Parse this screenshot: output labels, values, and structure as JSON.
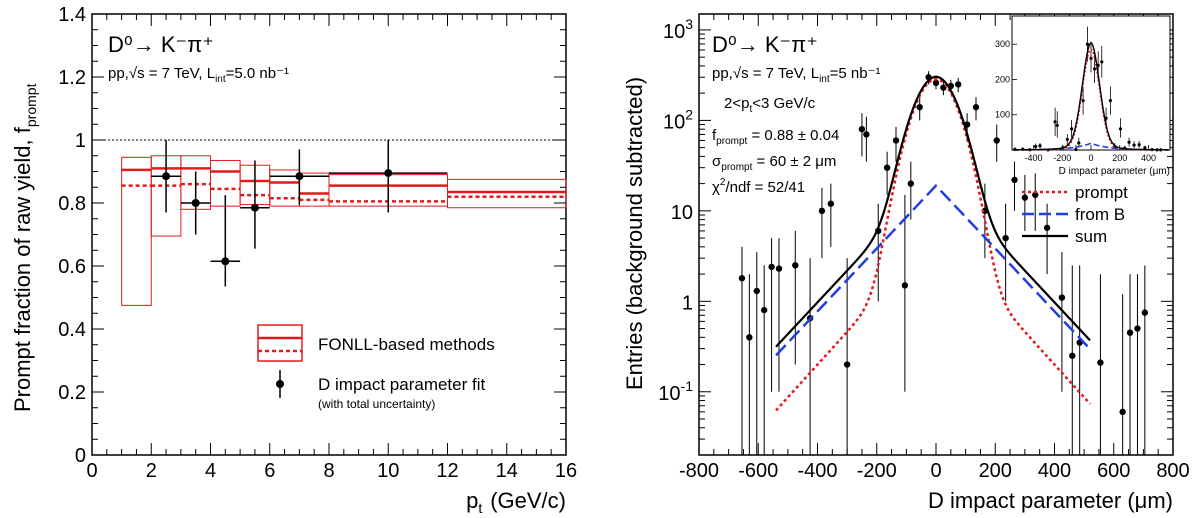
{
  "chart_data": [
    {
      "type": "scatter",
      "title": "",
      "xlabel": "p_t (GeV/c)",
      "ylabel": "Prompt fraction of raw yield, f_prompt",
      "xlim": [
        0,
        16
      ],
      "ylim": [
        0,
        1.4
      ],
      "x_ticks": [
        "0",
        "2",
        "4",
        "6",
        "8",
        "10",
        "12",
        "14",
        "16"
      ],
      "y_ticks": [
        "0",
        "0.2",
        "0.4",
        "0.6",
        "0.8",
        "1",
        "1.2",
        "1.4"
      ],
      "reference_line": 1,
      "annotations": {
        "decay": "D⁰→ K⁻π⁺",
        "system": "pp,√s = 7 TeV, L",
        "lumi_sub": "int",
        "lumi_value": "=5.0 nb⁻¹"
      },
      "legend": {
        "fonll_label": "FONLL-based methods",
        "fit_label": "D impact parameter fit",
        "fit_note": "(with total uncertainty)",
        "placement": "bottom-right"
      },
      "fonll_bins": [
        {
          "xlo": 1,
          "xhi": 2,
          "central": 0.905,
          "band_lo": 0.475,
          "band_hi": 0.945,
          "dashed": 0.855
        },
        {
          "xlo": 2,
          "xhi": 3,
          "central": 0.91,
          "band_lo": 0.695,
          "band_hi": 0.95,
          "dashed": 0.855
        },
        {
          "xlo": 3,
          "xhi": 4,
          "central": 0.91,
          "band_lo": 0.78,
          "band_hi": 0.95,
          "dashed": 0.86
        },
        {
          "xlo": 4,
          "xhi": 5,
          "central": 0.9,
          "band_lo": 0.79,
          "band_hi": 0.935,
          "dashed": 0.845
        },
        {
          "xlo": 5,
          "xhi": 6,
          "central": 0.87,
          "band_lo": 0.795,
          "band_hi": 0.92,
          "dashed": 0.825
        },
        {
          "xlo": 6,
          "xhi": 7,
          "central": 0.865,
          "band_lo": 0.79,
          "band_hi": 0.905,
          "dashed": 0.815
        },
        {
          "xlo": 7,
          "xhi": 8,
          "central": 0.83,
          "band_lo": 0.79,
          "band_hi": 0.895,
          "dashed": 0.81
        },
        {
          "xlo": 8,
          "xhi": 12,
          "central": 0.855,
          "band_lo": 0.79,
          "band_hi": 0.89,
          "dashed": 0.805
        },
        {
          "xlo": 12,
          "xhi": 16,
          "central": 0.835,
          "band_lo": 0.785,
          "band_hi": 0.875,
          "dashed": 0.82
        }
      ],
      "points": [
        {
          "x": 2.5,
          "xerr": 0.5,
          "y": 0.885,
          "ylo": 0.77,
          "yhi": 1.0
        },
        {
          "x": 3.5,
          "xerr": 0.5,
          "y": 0.8,
          "ylo": 0.7,
          "yhi": 0.9
        },
        {
          "x": 4.5,
          "xerr": 0.5,
          "y": 0.615,
          "ylo": 0.535,
          "yhi": 0.825
        },
        {
          "x": 5.5,
          "xerr": 0.5,
          "y": 0.785,
          "ylo": 0.655,
          "yhi": 0.935
        },
        {
          "x": 7.0,
          "xerr": 1.0,
          "y": 0.885,
          "ylo": 0.795,
          "yhi": 0.97
        },
        {
          "x": 10.0,
          "xerr": 2.0,
          "y": 0.895,
          "ylo": 0.77,
          "yhi": 1.0
        }
      ]
    },
    {
      "type": "scatter",
      "title": "",
      "xlabel": "D impact parameter (μm)",
      "ylabel": "Entries (background subtracted)",
      "xlim": [
        -800,
        800
      ],
      "ylim": [
        0.02,
        1500
      ],
      "yscale": "log",
      "x_ticks": [
        "-800",
        "-600",
        "-400",
        "-200",
        "0",
        "200",
        "400",
        "600",
        "800"
      ],
      "y_ticks": [
        {
          "base": "10",
          "exp": "-1"
        },
        {
          "base": "1",
          "exp": ""
        },
        {
          "base": "10",
          "exp": ""
        },
        {
          "base": "10",
          "exp": "2"
        },
        {
          "base": "10",
          "exp": "3"
        }
      ],
      "annotations": {
        "decay": "D⁰→ K⁻π⁺",
        "system": "pp,√s = 7 TeV, L",
        "lumi_sub": "int",
        "lumi_value": "=5 nb⁻¹",
        "pt_range": "2<p",
        "pt_sub": "t",
        "pt_range_tail": "<3 GeV/c",
        "fprompt_label": "f",
        "fprompt_sub": "prompt",
        "fprompt_value": " = 0.88 ± 0.04",
        "sigma_label": "σ",
        "sigma_sub": "prompt",
        "sigma_value": " = 60 ± 2 μm",
        "chi2_label": "χ",
        "chi2_sup": "2",
        "chi2_value": "/ndf = 52/41"
      },
      "legend": {
        "items": [
          "prompt",
          "from B",
          "sum"
        ],
        "placement": "right"
      },
      "fit": {
        "prompt": {
          "amplitude": 280,
          "sigma": 60,
          "tail": 0.02,
          "tail_width": 120
        },
        "from_b": {
          "amplitude": 19,
          "decay_length": 125
        },
        "x_range": [
          -540,
          520
        ]
      },
      "points": [
        {
          "x": -655,
          "y": 1.8,
          "ylo": 0.02,
          "yhi": 4.0
        },
        {
          "x": -630,
          "y": 0.4,
          "ylo": 0.02,
          "yhi": 2.0
        },
        {
          "x": -605,
          "y": 1.3,
          "ylo": 0.02,
          "yhi": 3.5
        },
        {
          "x": -580,
          "y": 0.8,
          "ylo": 0.02,
          "yhi": 2.5
        },
        {
          "x": -555,
          "y": 2.4,
          "ylo": 0.1,
          "yhi": 5.0
        },
        {
          "x": -530,
          "y": 2.3,
          "ylo": 0.1,
          "yhi": 5.0
        },
        {
          "x": -475,
          "y": 2.5,
          "ylo": 0.2,
          "yhi": 6.0
        },
        {
          "x": -425,
          "y": 0.65,
          "ylo": 0.02,
          "yhi": 3.0
        },
        {
          "x": -385,
          "y": 10,
          "ylo": 3.0,
          "yhi": 18
        },
        {
          "x": -355,
          "y": 12,
          "ylo": 4.0,
          "yhi": 20
        },
        {
          "x": -300,
          "y": 0.2,
          "ylo": 0.02,
          "yhi": 3.0
        },
        {
          "x": -250,
          "y": 80,
          "ylo": 40,
          "yhi": 120
        },
        {
          "x": -235,
          "y": 70,
          "ylo": 35,
          "yhi": 110
        },
        {
          "x": -195,
          "y": 6.0,
          "ylo": 1.0,
          "yhi": 12
        },
        {
          "x": -165,
          "y": 30,
          "ylo": 15,
          "yhi": 45
        },
        {
          "x": -135,
          "y": 60,
          "ylo": 35,
          "yhi": 85
        },
        {
          "x": -105,
          "y": 1.5,
          "ylo": 0.1,
          "yhi": 15
        },
        {
          "x": -85,
          "y": 20,
          "ylo": 8,
          "yhi": 35
        },
        {
          "x": -55,
          "y": 140,
          "ylo": 100,
          "yhi": 180
        },
        {
          "x": -25,
          "y": 300,
          "ylo": 250,
          "yhi": 350
        },
        {
          "x": 0,
          "y": 260,
          "ylo": 220,
          "yhi": 300
        },
        {
          "x": 25,
          "y": 230,
          "ylo": 190,
          "yhi": 270
        },
        {
          "x": 50,
          "y": 240,
          "ylo": 200,
          "yhi": 280
        },
        {
          "x": 75,
          "y": 250,
          "ylo": 205,
          "yhi": 295
        },
        {
          "x": 105,
          "y": 90,
          "ylo": 60,
          "yhi": 120
        },
        {
          "x": 135,
          "y": 140,
          "ylo": 100,
          "yhi": 180
        },
        {
          "x": 165,
          "y": 10,
          "ylo": 3,
          "yhi": 20
        },
        {
          "x": 205,
          "y": 60,
          "ylo": 35,
          "yhi": 90
        },
        {
          "x": 235,
          "y": 5.0,
          "ylo": 1,
          "yhi": 12
        },
        {
          "x": 265,
          "y": 22,
          "ylo": 10,
          "yhi": 35
        },
        {
          "x": 300,
          "y": 14,
          "ylo": 6,
          "yhi": 25
        },
        {
          "x": 335,
          "y": 15,
          "ylo": 6,
          "yhi": 26
        },
        {
          "x": 375,
          "y": 6.5,
          "ylo": 2,
          "yhi": 12
        },
        {
          "x": 425,
          "y": 1.1,
          "ylo": 0.1,
          "yhi": 3.5
        },
        {
          "x": 460,
          "y": 0.25,
          "ylo": 0.02,
          "yhi": 2.5
        },
        {
          "x": 485,
          "y": 0.35,
          "ylo": 0.02,
          "yhi": 2.5
        },
        {
          "x": 555,
          "y": 0.21,
          "ylo": 0.02,
          "yhi": 2.0
        },
        {
          "x": 630,
          "y": 0.06,
          "ylo": 0.02,
          "yhi": 1.2
        },
        {
          "x": 655,
          "y": 0.45,
          "ylo": 0.02,
          "yhi": 2.0
        },
        {
          "x": 680,
          "y": 0.5,
          "ylo": 0.02,
          "yhi": 2.0
        },
        {
          "x": 705,
          "y": 0.75,
          "ylo": 0.02,
          "yhi": 2.5
        }
      ],
      "inset": {
        "xlabel": "D impact parameter (μm)",
        "xlim": [
          -550,
          550
        ],
        "ylim": [
          0,
          380
        ],
        "x_ticks": [
          "-400",
          "-200",
          "0",
          "200",
          "400"
        ],
        "y_ticks": [
          "100",
          "200",
          "300"
        ]
      }
    }
  ]
}
